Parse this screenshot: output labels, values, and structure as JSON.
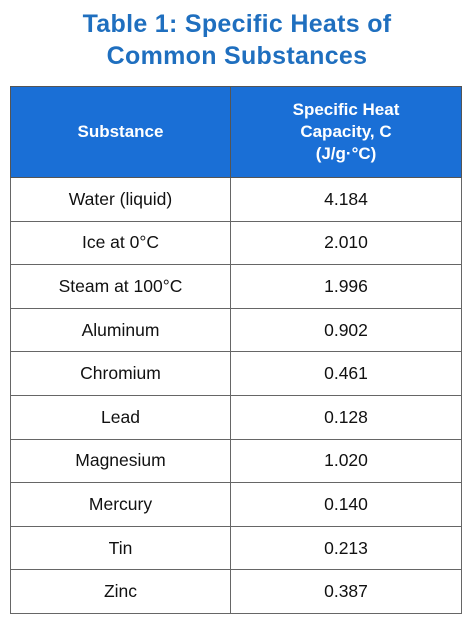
{
  "header": {
    "title_lines": [
      "Table 1: Specific Heats of",
      "Common Substances"
    ]
  },
  "table": {
    "columns": [
      [
        "Substance"
      ],
      [
        "Specific Heat",
        "Capacity, C",
        "(J/g·°C)"
      ]
    ],
    "rows": [
      [
        "Water (liquid)",
        "4.184"
      ],
      [
        "Ice at 0°C",
        "2.010"
      ],
      [
        "Steam at 100°C",
        "1.996"
      ],
      [
        "Aluminum",
        "0.902"
      ],
      [
        "Chromium",
        "0.461"
      ],
      [
        "Lead",
        "0.128"
      ],
      [
        "Magnesium",
        "1.020"
      ],
      [
        "Mercury",
        "0.140"
      ],
      [
        "Tin",
        "0.213"
      ],
      [
        "Zinc",
        "0.387"
      ]
    ]
  }
}
